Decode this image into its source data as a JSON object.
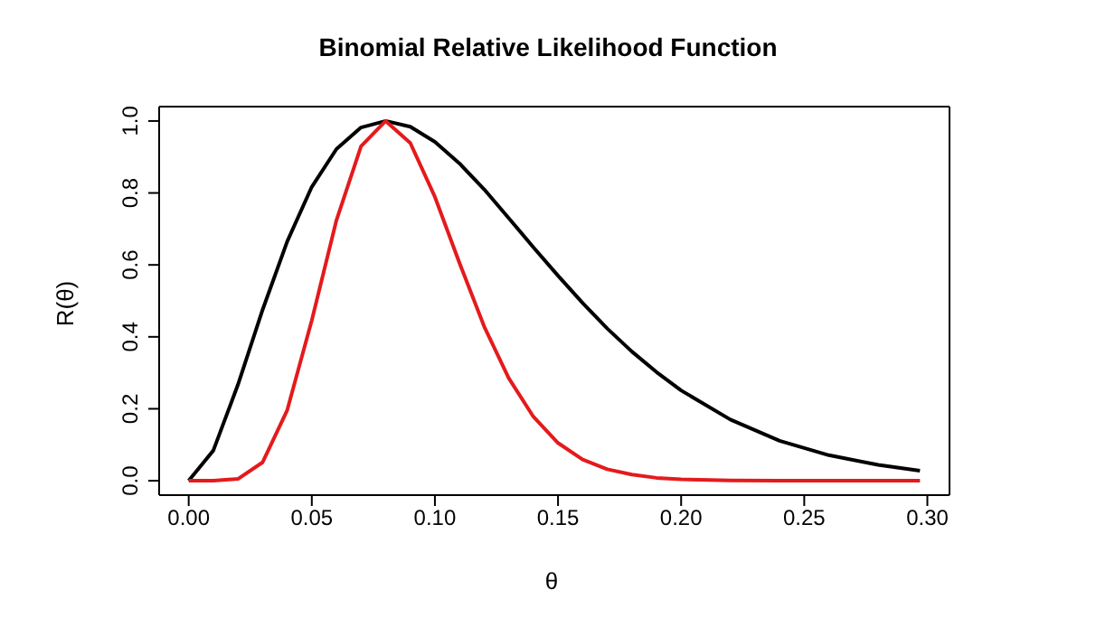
{
  "chart_data": {
    "type": "line",
    "title": "Binomial Relative Likelihood Function",
    "xlabel": "θ",
    "ylabel": "R(θ)",
    "series": [
      {
        "color": "#000000",
        "x": [
          0,
          0.01,
          0.02,
          0.03,
          0.04,
          0.05,
          0.06,
          0.07,
          0.08,
          0.09,
          0.1,
          0.11,
          0.12,
          0.13,
          0.14,
          0.15,
          0.16,
          0.17,
          0.18,
          0.19,
          0.2,
          0.22,
          0.24,
          0.26,
          0.28,
          0.297
        ],
        "values": [
          0,
          0.084,
          0.267,
          0.475,
          0.665,
          0.817,
          0.922,
          0.982,
          1.0,
          0.984,
          0.942,
          0.882,
          0.81,
          0.73,
          0.649,
          0.57,
          0.494,
          0.423,
          0.359,
          0.302,
          0.251,
          0.17,
          0.111,
          0.071,
          0.044,
          0.028
        ]
      },
      {
        "color": "#e41a1c",
        "x": [
          0,
          0.01,
          0.02,
          0.03,
          0.04,
          0.05,
          0.06,
          0.07,
          0.08,
          0.09,
          0.1,
          0.11,
          0.12,
          0.13,
          0.14,
          0.15,
          0.16,
          0.17,
          0.18,
          0.19,
          0.2,
          0.22,
          0.24,
          0.297
        ],
        "values": [
          0,
          0,
          0.005,
          0.051,
          0.196,
          0.446,
          0.724,
          0.93,
          1.0,
          0.939,
          0.789,
          0.605,
          0.429,
          0.285,
          0.178,
          0.105,
          0.059,
          0.032,
          0.017,
          0.008,
          0.004,
          0.001,
          0,
          0
        ]
      }
    ],
    "xlim": [
      -0.012,
      0.309
    ],
    "ylim": [
      -0.04,
      1.04
    ],
    "xticks": [
      {
        "value": 0,
        "label": "0.00"
      },
      0.05,
      {
        "value": 0.1,
        "label": "0.10"
      },
      0.15,
      {
        "value": 0.2,
        "label": "0.20"
      },
      0.25,
      {
        "value": 0.3,
        "label": "0.30"
      }
    ],
    "yticks": [
      {
        "value": 0,
        "label": "0.0"
      },
      0.2,
      0.4,
      0.6,
      0.8,
      {
        "value": 1,
        "label": "1.0"
      }
    ],
    "grid": false,
    "legend": false,
    "marker": "none",
    "line_style": "solid"
  }
}
